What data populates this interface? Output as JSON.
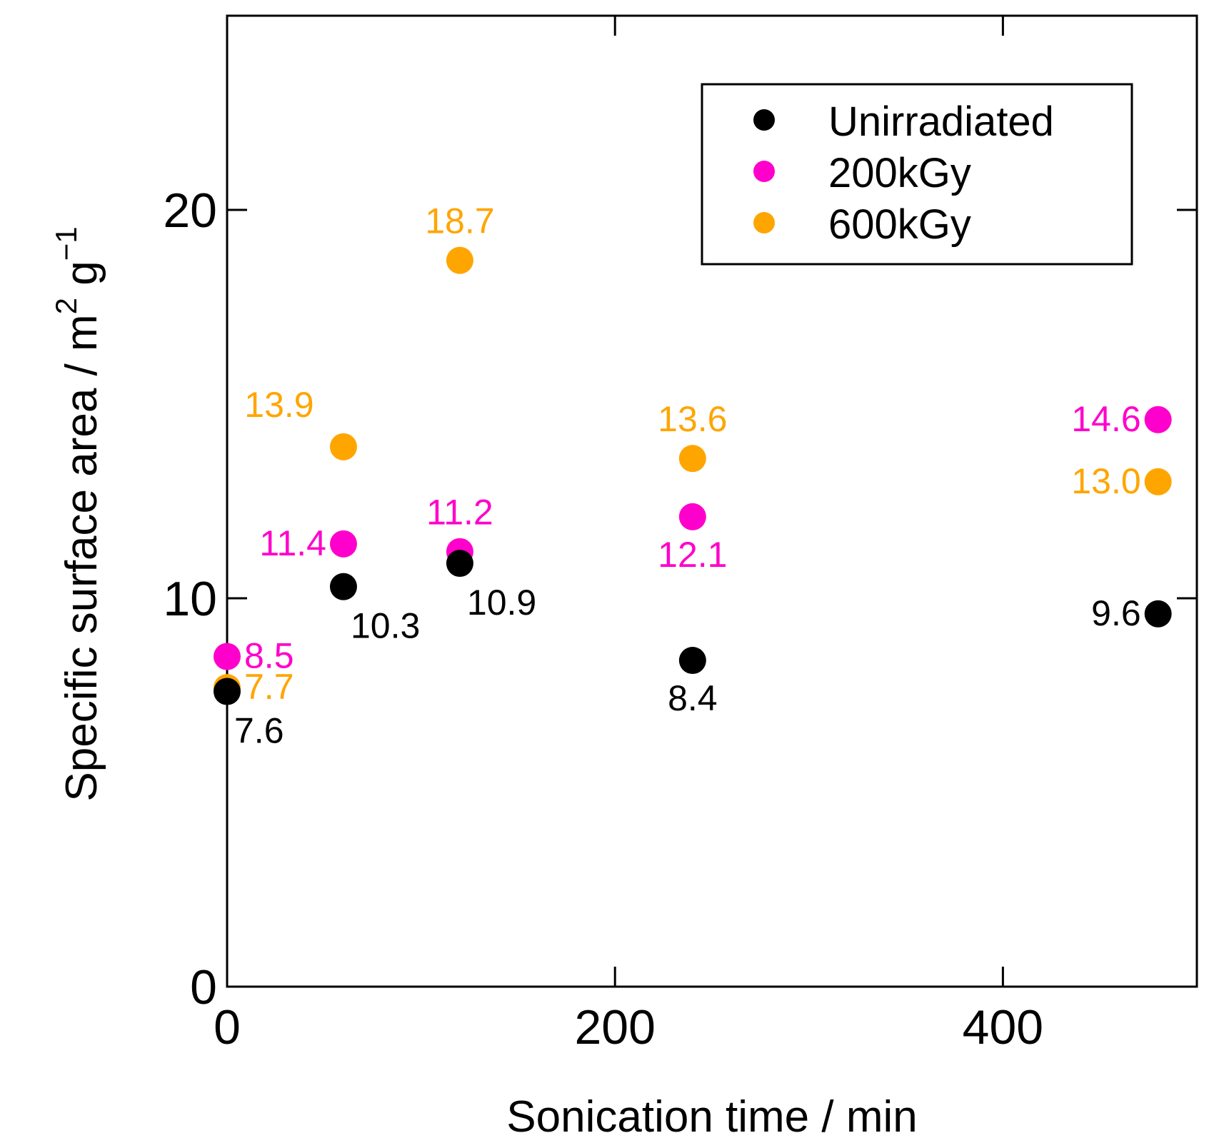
{
  "chart_data": {
    "type": "scatter",
    "title": "",
    "xlabel": "Sonication time / min",
    "ylabel": {
      "main": "Specific surface area / m",
      "sup1": "2",
      "mid": " g",
      "sup2": "−1"
    },
    "xlim": [
      0,
      500
    ],
    "ylim": [
      0,
      25
    ],
    "xticks": [
      0,
      200,
      400
    ],
    "xtick_labels": [
      "0",
      "200",
      "400"
    ],
    "yticks": [
      0,
      10,
      20
    ],
    "ytick_labels": [
      "0",
      "10",
      "20"
    ],
    "grid": false,
    "legend": {
      "position": "top-right",
      "entries": [
        "Unirradiated",
        "200kGy",
        "600kGy"
      ]
    },
    "series": [
      {
        "name": "Unirradiated",
        "color": "#000000",
        "x": [
          0,
          60,
          120,
          240,
          480
        ],
        "y": [
          7.6,
          10.3,
          10.9,
          8.4,
          9.6
        ],
        "labels": [
          "7.6",
          "10.3",
          "10.9",
          "8.4",
          "9.6"
        ],
        "label_positions": [
          "below-right",
          "below-right",
          "below-right",
          "below",
          "left"
        ]
      },
      {
        "name": "200kGy",
        "color": "#ff00cc",
        "x": [
          0,
          60,
          120,
          240,
          480
        ],
        "y": [
          8.5,
          11.4,
          11.2,
          12.1,
          14.6
        ],
        "labels": [
          "8.5",
          "11.4",
          "11.2",
          "12.1",
          "14.6"
        ],
        "label_positions": [
          "right",
          "left",
          "above",
          "below",
          "left"
        ]
      },
      {
        "name": "600kGy",
        "color": "#ffa500",
        "x": [
          0,
          60,
          120,
          240,
          480
        ],
        "y": [
          7.7,
          13.9,
          18.7,
          13.6,
          13.0
        ],
        "labels": [
          "7.7",
          "13.9",
          "18.7",
          "13.6",
          "13.0"
        ],
        "label_positions": [
          "right",
          "above-left",
          "above",
          "above",
          "left"
        ]
      }
    ]
  }
}
